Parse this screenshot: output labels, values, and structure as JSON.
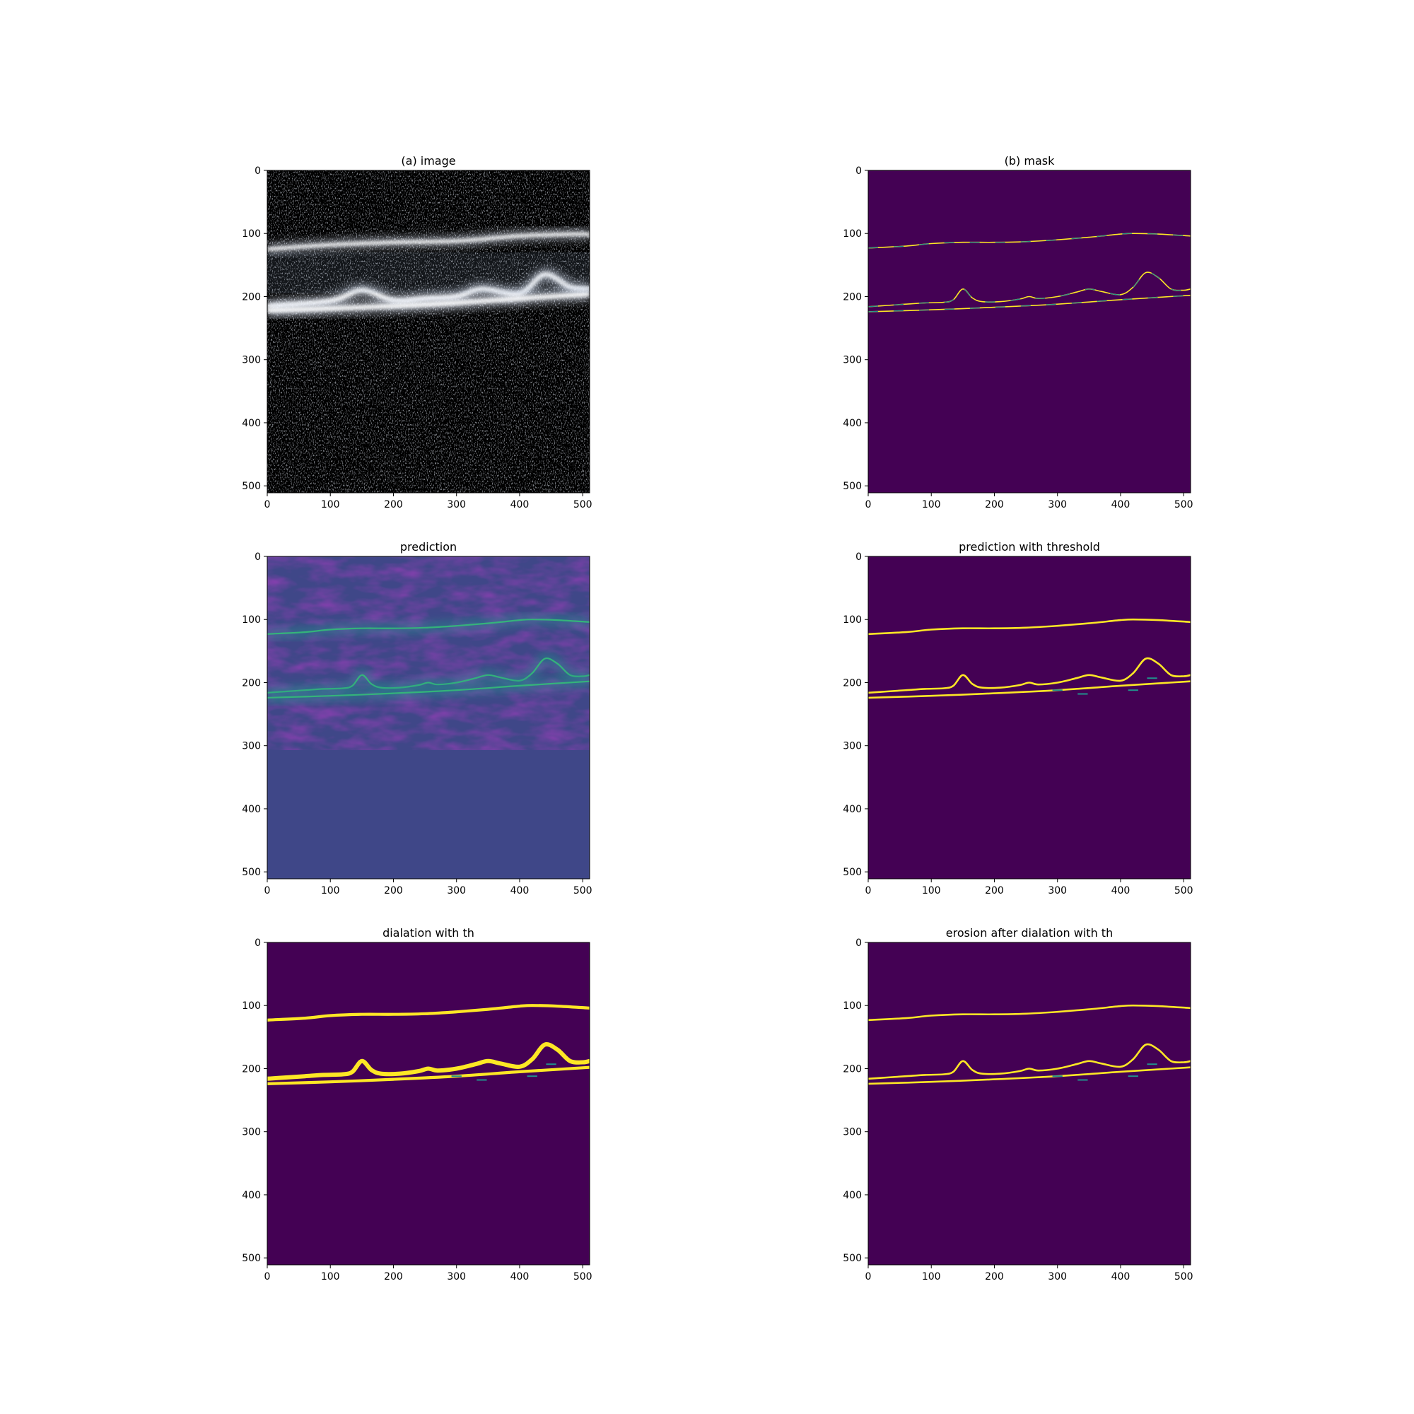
{
  "chart_data": [
    {
      "type": "heatmap",
      "title": "(a) image",
      "content": "grayscale OCT B-scan",
      "colormap": "bone",
      "xlim": [
        0,
        511
      ],
      "ylim": [
        511,
        0
      ],
      "xticks": [
        0,
        100,
        200,
        300,
        400,
        500
      ],
      "yticks": [
        0,
        100,
        200,
        300,
        400,
        500
      ],
      "layers": [
        {
          "x": [
            0,
            100,
            200,
            300,
            400,
            500,
            511
          ],
          "y": [
            125,
            118,
            114,
            112,
            104,
            101,
            104
          ]
        },
        {
          "x": [
            0,
            100,
            150,
            200,
            250,
            300,
            340,
            400,
            440,
            480,
            511
          ],
          "y": [
            215,
            207,
            190,
            206,
            203,
            200,
            188,
            195,
            165,
            185,
            188
          ]
        },
        {
          "x": [
            0,
            100,
            200,
            300,
            400,
            511
          ],
          "y": [
            222,
            219,
            215,
            210,
            203,
            196
          ]
        }
      ],
      "background": "#000000"
    },
    {
      "type": "heatmap",
      "title": "(b) mask",
      "content": "boundary mask",
      "colormap": "viridis",
      "xlim": [
        0,
        511
      ],
      "ylim": [
        511,
        0
      ],
      "xticks": [
        0,
        100,
        200,
        300,
        400,
        500
      ],
      "yticks": [
        0,
        100,
        200,
        300,
        400,
        500
      ],
      "layers": [
        {
          "x": [
            0,
            60,
            100,
            150,
            200,
            250,
            300,
            350,
            400,
            420,
            460,
            511
          ],
          "y": [
            123,
            120,
            116,
            114,
            114,
            113,
            110,
            106,
            101,
            100,
            101,
            104
          ]
        },
        {
          "x": [
            0,
            30,
            60,
            90,
            120,
            135,
            150,
            165,
            180,
            210,
            240,
            255,
            270,
            300,
            330,
            350,
            370,
            400,
            420,
            440,
            460,
            480,
            500,
            511
          ],
          "y": [
            216,
            214,
            212,
            210,
            209,
            205,
            188,
            202,
            208,
            208,
            204,
            200,
            203,
            200,
            193,
            188,
            192,
            197,
            185,
            162,
            170,
            188,
            190,
            188
          ]
        },
        {
          "x": [
            0,
            100,
            200,
            300,
            400,
            511
          ],
          "y": [
            224,
            221,
            217,
            212,
            205,
            198
          ]
        }
      ],
      "background": "#440154"
    },
    {
      "type": "heatmap",
      "title": "prediction",
      "content": "predicted probability map",
      "colormap": "viridis",
      "xlim": [
        0,
        511
      ],
      "ylim": [
        511,
        0
      ],
      "xticks": [
        0,
        100,
        200,
        300,
        400,
        500
      ],
      "yticks": [
        0,
        100,
        200,
        300,
        400,
        500
      ],
      "layers": [
        {
          "x": [
            0,
            60,
            100,
            150,
            200,
            250,
            300,
            350,
            400,
            420,
            460,
            511
          ],
          "y": [
            123,
            120,
            116,
            114,
            114,
            113,
            110,
            106,
            101,
            100,
            101,
            104
          ]
        },
        {
          "x": [
            0,
            30,
            60,
            90,
            120,
            135,
            150,
            165,
            180,
            210,
            240,
            255,
            270,
            300,
            330,
            350,
            370,
            400,
            420,
            440,
            460,
            480,
            500,
            511
          ],
          "y": [
            216,
            214,
            212,
            210,
            209,
            205,
            188,
            202,
            208,
            208,
            204,
            200,
            203,
            200,
            193,
            188,
            192,
            197,
            185,
            162,
            170,
            188,
            190,
            188
          ]
        },
        {
          "x": [
            0,
            100,
            200,
            300,
            400,
            511
          ],
          "y": [
            224,
            221,
            217,
            212,
            205,
            198
          ]
        }
      ],
      "background": "#3f4788"
    },
    {
      "type": "heatmap",
      "title": "prediction with threshold",
      "content": "binary thresholded prediction",
      "colormap": "viridis",
      "xlim": [
        0,
        511
      ],
      "ylim": [
        511,
        0
      ],
      "xticks": [
        0,
        100,
        200,
        300,
        400,
        500
      ],
      "yticks": [
        0,
        100,
        200,
        300,
        400,
        500
      ],
      "layers": [
        {
          "x": [
            0,
            60,
            100,
            150,
            200,
            250,
            300,
            350,
            400,
            420,
            460,
            511
          ],
          "y": [
            123,
            120,
            116,
            114,
            114,
            113,
            110,
            106,
            101,
            100,
            101,
            104
          ]
        },
        {
          "x": [
            0,
            30,
            60,
            90,
            120,
            135,
            150,
            165,
            180,
            210,
            240,
            255,
            270,
            300,
            330,
            350,
            370,
            400,
            420,
            440,
            460,
            480,
            500,
            511
          ],
          "y": [
            216,
            214,
            212,
            210,
            209,
            205,
            188,
            202,
            208,
            208,
            204,
            200,
            203,
            200,
            193,
            188,
            192,
            197,
            185,
            162,
            170,
            188,
            190,
            188
          ]
        },
        {
          "x": [
            0,
            100,
            200,
            300,
            400,
            511
          ],
          "y": [
            224,
            221,
            217,
            212,
            205,
            198
          ]
        }
      ],
      "background": "#440154"
    },
    {
      "type": "heatmap",
      "title": "dialation with th",
      "content": "dilated binary prediction",
      "colormap": "viridis",
      "xlim": [
        0,
        511
      ],
      "ylim": [
        511,
        0
      ],
      "xticks": [
        0,
        100,
        200,
        300,
        400,
        500
      ],
      "yticks": [
        0,
        100,
        200,
        300,
        400,
        500
      ],
      "layers": [
        {
          "x": [
            0,
            60,
            100,
            150,
            200,
            250,
            300,
            350,
            400,
            420,
            460,
            511
          ],
          "y": [
            123,
            120,
            116,
            114,
            114,
            113,
            110,
            106,
            101,
            100,
            101,
            104
          ]
        },
        {
          "x": [
            0,
            30,
            60,
            90,
            120,
            135,
            150,
            165,
            180,
            210,
            240,
            255,
            270,
            300,
            330,
            350,
            370,
            400,
            420,
            440,
            460,
            480,
            500,
            511
          ],
          "y": [
            216,
            214,
            212,
            210,
            209,
            205,
            188,
            202,
            208,
            208,
            204,
            200,
            203,
            200,
            193,
            188,
            192,
            197,
            185,
            162,
            170,
            188,
            190,
            188
          ]
        },
        {
          "x": [
            0,
            100,
            200,
            300,
            400,
            511
          ],
          "y": [
            224,
            221,
            217,
            212,
            205,
            198
          ]
        }
      ],
      "background": "#440154"
    },
    {
      "type": "heatmap",
      "title": "erosion after dialation with th",
      "content": "eroded binary prediction",
      "colormap": "viridis",
      "xlim": [
        0,
        511
      ],
      "ylim": [
        511,
        0
      ],
      "xticks": [
        0,
        100,
        200,
        300,
        400,
        500
      ],
      "yticks": [
        0,
        100,
        200,
        300,
        400,
        500
      ],
      "layers": [
        {
          "x": [
            0,
            60,
            100,
            150,
            200,
            250,
            300,
            350,
            400,
            420,
            460,
            511
          ],
          "y": [
            123,
            120,
            116,
            114,
            114,
            113,
            110,
            106,
            101,
            100,
            101,
            104
          ]
        },
        {
          "x": [
            0,
            30,
            60,
            90,
            120,
            135,
            150,
            165,
            180,
            210,
            240,
            255,
            270,
            300,
            330,
            350,
            370,
            400,
            420,
            440,
            460,
            480,
            500,
            511
          ],
          "y": [
            216,
            214,
            212,
            210,
            209,
            205,
            188,
            202,
            208,
            208,
            204,
            200,
            203,
            200,
            193,
            188,
            192,
            197,
            185,
            162,
            170,
            188,
            190,
            188
          ]
        },
        {
          "x": [
            0,
            100,
            200,
            300,
            400,
            511
          ],
          "y": [
            224,
            221,
            217,
            212,
            205,
            198
          ]
        }
      ],
      "background": "#440154"
    }
  ],
  "colors": {
    "viridis_low": "#440154",
    "viridis_mid": "#21918c",
    "viridis_high": "#fde725",
    "prediction_bg": "#3f4788",
    "image_layer": "#e8f0ff"
  }
}
